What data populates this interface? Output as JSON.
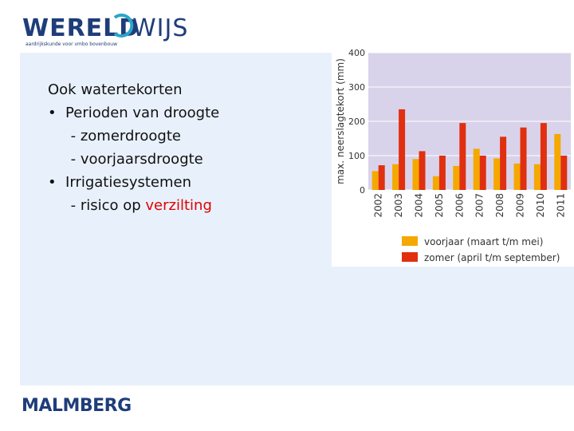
{
  "header": {
    "logo_part1": "WERELD",
    "logo_part2": "WIJS",
    "tagline": "aardrijkskunde voor vmbo bovenbouw"
  },
  "slide": {
    "lines": [
      "Ook watertekorten",
      "•  Perioden van droogte",
      "     - zomerdroogte",
      "     - voorjaarsdroogte",
      "•  Irrigatiesystemen",
      "     - risico op "
    ],
    "highlight_word": "verzilting"
  },
  "chart_data": {
    "type": "bar",
    "ylabel": "max. neerslagtekort (mm)",
    "ylim": [
      0,
      400
    ],
    "yticks": [
      "0",
      "100",
      "200",
      "300",
      "400"
    ],
    "categories": [
      "2002",
      "2003",
      "2004",
      "2005",
      "2006",
      "2007",
      "2008",
      "2009",
      "2010",
      "2011"
    ],
    "series": [
      {
        "name": "voorjaar (maart t/m mei)",
        "color": "#f5a800",
        "values": [
          55,
          75,
          90,
          40,
          70,
          120,
          92,
          77,
          75,
          163
        ]
      },
      {
        "name": "zomer (april t/m september)",
        "color": "#e03010",
        "values": [
          72,
          235,
          113,
          100,
          195,
          100,
          155,
          182,
          195,
          100
        ]
      }
    ],
    "plot_background": "#d8d3ea",
    "grid": true,
    "legend_position": "bottom"
  },
  "footer": {
    "logo": "MALMBERG"
  }
}
